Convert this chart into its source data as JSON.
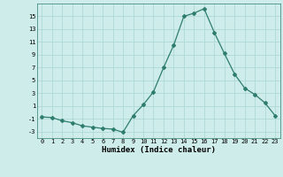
{
  "x": [
    0,
    1,
    2,
    3,
    4,
    5,
    6,
    7,
    8,
    9,
    10,
    11,
    12,
    13,
    14,
    15,
    16,
    17,
    18,
    19,
    20,
    21,
    22,
    23
  ],
  "y": [
    -0.7,
    -0.8,
    -1.3,
    -1.6,
    -2.1,
    -2.3,
    -2.5,
    -2.6,
    -3.1,
    -0.5,
    1.2,
    3.2,
    7.0,
    10.5,
    15.0,
    15.5,
    16.2,
    12.5,
    9.2,
    6.0,
    3.8,
    2.8,
    1.5,
    -0.5
  ],
  "line_color": "#2e7d6e",
  "marker": "D",
  "marker_size": 2.0,
  "bg_color": "#ceecea",
  "grid_color": "#aed8d4",
  "xlabel": "Humidex (Indice chaleur)",
  "ylim": [
    -4,
    17
  ],
  "xlim": [
    -0.5,
    23.5
  ],
  "yticks": [
    -3,
    -1,
    1,
    3,
    5,
    7,
    9,
    11,
    13,
    15
  ],
  "xticks": [
    0,
    1,
    2,
    3,
    4,
    5,
    6,
    7,
    8,
    9,
    10,
    11,
    12,
    13,
    14,
    15,
    16,
    17,
    18,
    19,
    20,
    21,
    22,
    23
  ],
  "tick_fontsize": 5.0,
  "xlabel_fontsize": 6.5
}
